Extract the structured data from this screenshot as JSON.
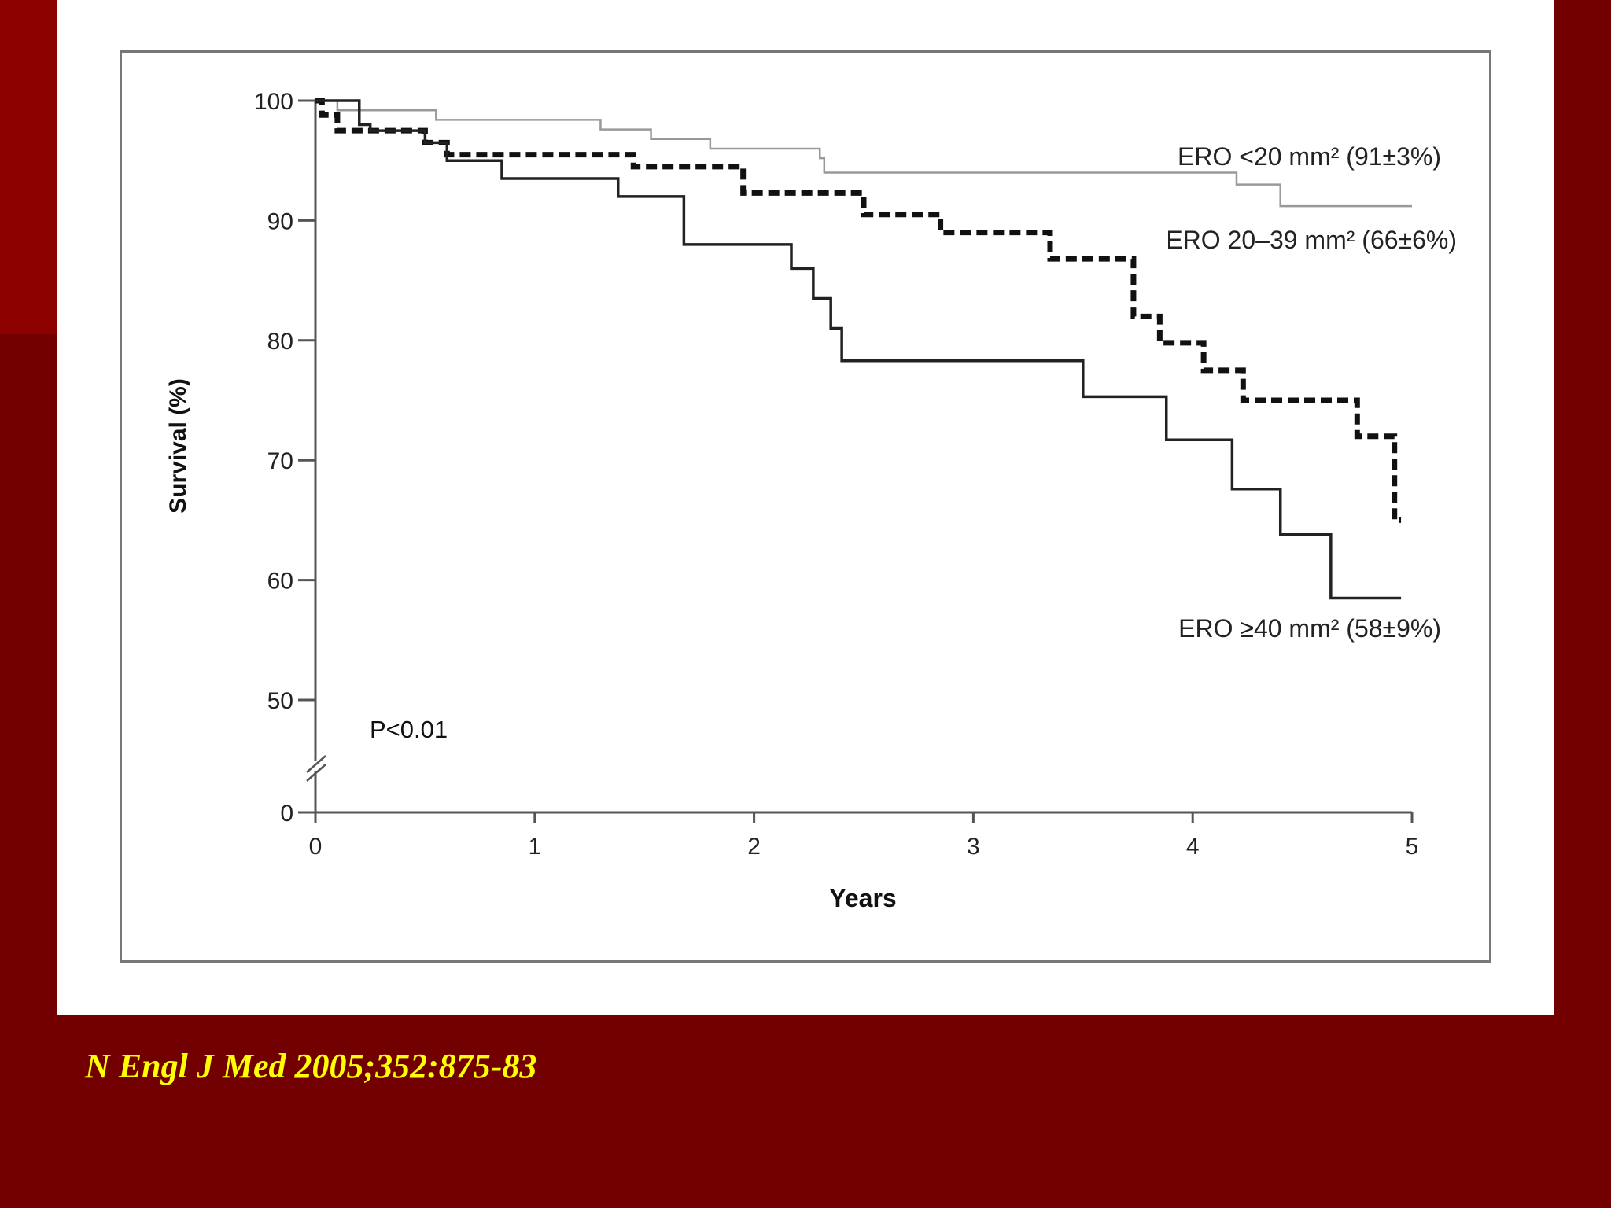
{
  "colors": {
    "slide_background": "#730000",
    "slide_accent": "#8c0000",
    "panel_background": "#ffffff",
    "citation_text": "#ffff00",
    "series_lt20": "#999999",
    "series_20_39": "#111111",
    "series_ge40": "#222222"
  },
  "citation": "N Engl J Med 2005;352:875-83",
  "chart_data": {
    "type": "line",
    "step": true,
    "xlabel": "Years",
    "ylabel": "Survival (%)",
    "xlim": [
      0,
      5
    ],
    "ylim": [
      0,
      100
    ],
    "axis_break": "between 0 and 50",
    "x_ticks": [
      "0",
      "1",
      "2",
      "3",
      "4",
      "5"
    ],
    "y_ticks": [
      "0",
      "50",
      "60",
      "70",
      "80",
      "90",
      "100"
    ],
    "grid": false,
    "annotation": "P<0.01",
    "series": [
      {
        "name": "ERO <20 mm² (91±3%)",
        "style": "solid-thin-gray",
        "x": [
          0,
          0.1,
          0.55,
          1.3,
          1.53,
          1.8,
          2.3,
          2.32,
          4.2,
          4.4,
          5.0
        ],
        "y": [
          100,
          99.2,
          98.4,
          97.6,
          96.8,
          96.0,
          95.2,
          94.0,
          93.0,
          91.2,
          91.2
        ]
      },
      {
        "name": "ERO 20–39 mm² (66±6%)",
        "style": "dashed-thick",
        "x": [
          0,
          0.03,
          0.1,
          0.5,
          0.6,
          1.45,
          1.95,
          2.5,
          2.85,
          3.35,
          3.73,
          3.85,
          4.05,
          4.23,
          4.75,
          4.92,
          4.95
        ],
        "y": [
          100,
          98.8,
          97.5,
          96.5,
          95.5,
          94.5,
          92.3,
          90.5,
          89.0,
          86.8,
          82.0,
          79.8,
          77.5,
          75.0,
          72.0,
          65.0,
          65.0
        ]
      },
      {
        "name": "ERO ≥40 mm² (58±9%)",
        "style": "solid-thick",
        "x": [
          0,
          0.2,
          0.25,
          0.5,
          0.6,
          0.85,
          1.38,
          1.68,
          2.17,
          2.27,
          2.35,
          2.4,
          3.5,
          3.88,
          4.18,
          4.4,
          4.63,
          4.95
        ],
        "y": [
          100,
          98.0,
          97.5,
          96.5,
          95.0,
          93.5,
          92.0,
          88.0,
          86.0,
          83.5,
          81.0,
          78.3,
          75.3,
          71.7,
          67.6,
          63.8,
          58.5,
          58.5
        ]
      }
    ]
  }
}
